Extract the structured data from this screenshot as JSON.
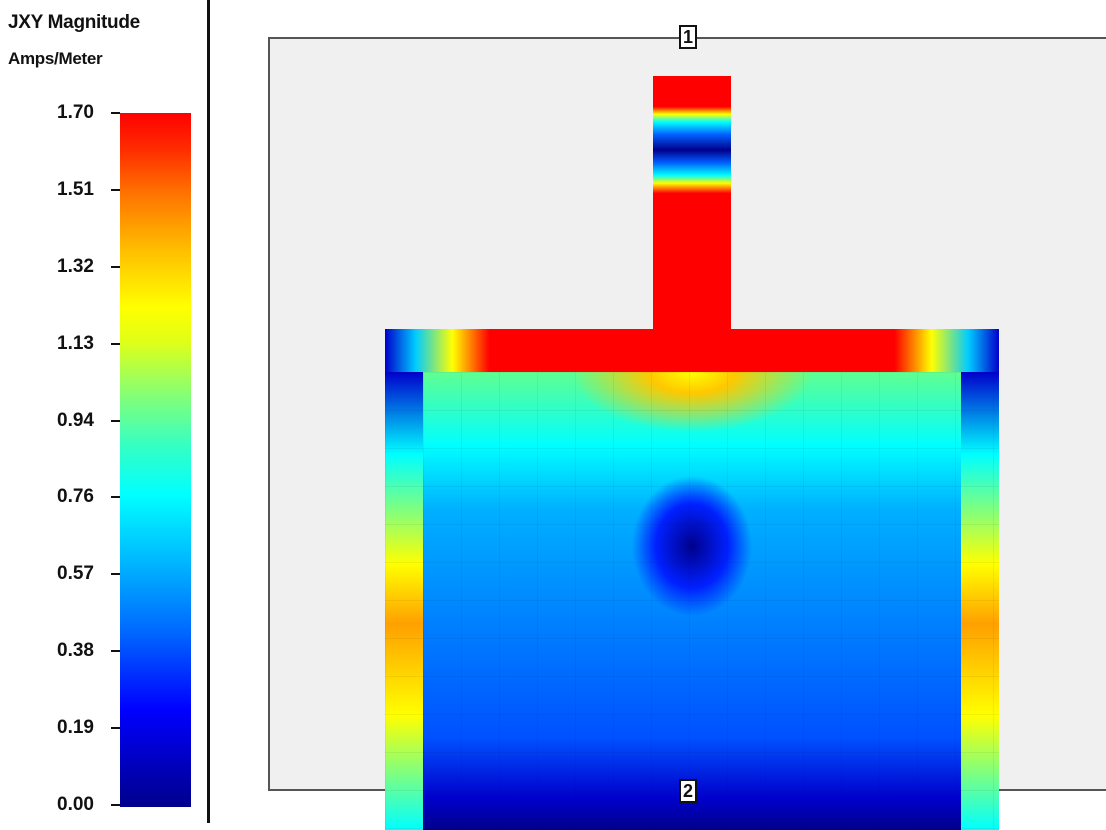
{
  "legend": {
    "title": "JXY Magnitude",
    "units": "Amps/Meter",
    "ticks": [
      "1.70",
      "1.51",
      "1.32",
      "1.13",
      "0.94",
      "0.76",
      "0.57",
      "0.38",
      "0.19",
      "0.00"
    ],
    "colors": [
      "#00008b",
      "#0000ff",
      "#00ffff",
      "#ffff00",
      "#ff0000"
    ]
  },
  "ports": [
    "1",
    "2"
  ],
  "colors": {
    "background": "#f0f0f0",
    "max": "#ff0000",
    "min": "#00008b"
  }
}
